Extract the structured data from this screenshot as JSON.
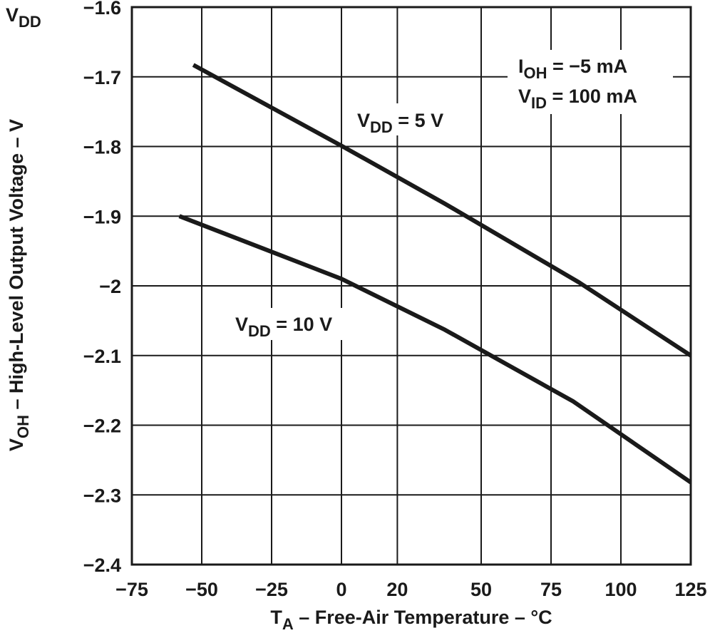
{
  "chart_data": {
    "type": "line",
    "title": "",
    "xlabel": {
      "main": "T",
      "sub": "A",
      "rest": " – Free-Air Temperature – °C"
    },
    "ylabel": {
      "main": "V",
      "sub": "OH",
      "rest": " – High-Level Output Voltage – V"
    },
    "y_unit_label": {
      "main": "V",
      "sub": "DD"
    },
    "xlim": [
      -75,
      125
    ],
    "ylim": [
      -2.4,
      -1.6
    ],
    "x_ticks": [
      -75,
      -50,
      -25,
      0,
      20,
      50,
      75,
      100,
      125
    ],
    "x_tick_labels": [
      "−75",
      "−50",
      "−25",
      "0",
      "20",
      "50",
      "75",
      "100",
      "125"
    ],
    "y_ticks": [
      -1.6,
      -1.7,
      -1.8,
      -1.9,
      -2.0,
      -2.1,
      -2.2,
      -2.3,
      -2.4
    ],
    "y_tick_labels": [
      "−1.6",
      "−1.7",
      "−1.8",
      "−1.9",
      "−2",
      "−2.1",
      "−2.2",
      "−2.3",
      "−2.4"
    ],
    "grid": true,
    "series": [
      {
        "name": "VDD = 5 V",
        "label": {
          "main": "V",
          "sub": "DD",
          "rest": " = 5 V"
        },
        "points": [
          [
            -53,
            -1.683
          ],
          [
            0,
            -1.799
          ],
          [
            37,
            -1.882
          ],
          [
            85,
            -1.995
          ],
          [
            125,
            -2.1
          ]
        ]
      },
      {
        "name": "VDD = 10 V",
        "label": {
          "main": "V",
          "sub": "DD",
          "rest": " = 10 V"
        },
        "points": [
          [
            -58,
            -1.9
          ],
          [
            -9,
            -1.976
          ],
          [
            0,
            -1.99
          ],
          [
            37,
            -2.063
          ],
          [
            83,
            -2.166
          ],
          [
            125,
            -2.282
          ]
        ]
      }
    ],
    "conditions": [
      {
        "main": "I",
        "sub": "OH",
        "rest": " = −5 mA"
      },
      {
        "main": "V",
        "sub": "ID",
        "rest": " = 100 mA"
      }
    ]
  }
}
